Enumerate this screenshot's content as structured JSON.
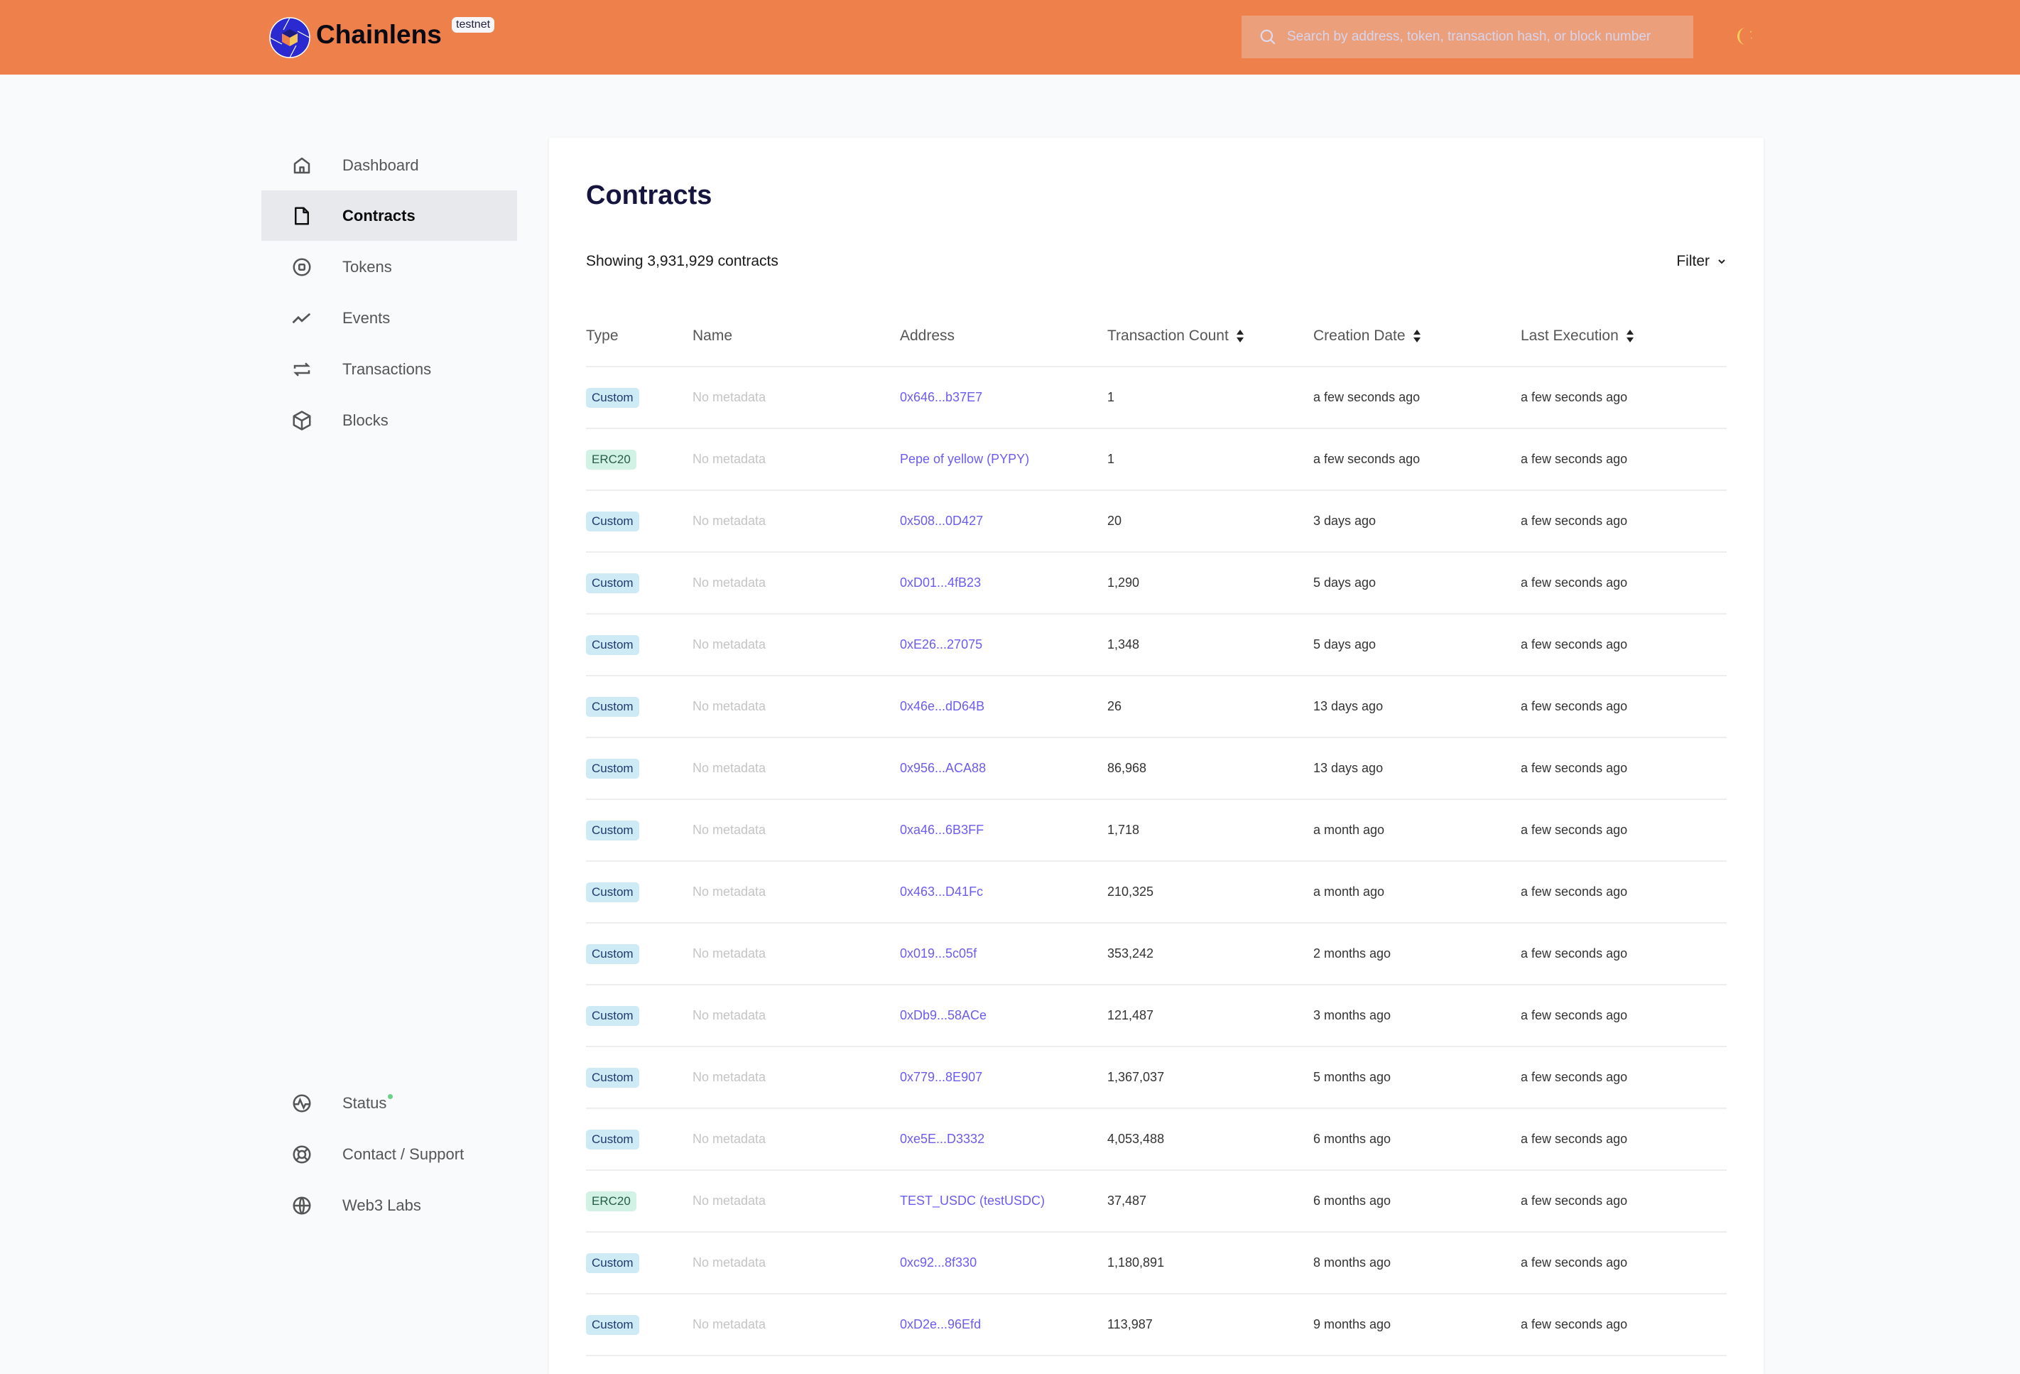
{
  "header": {
    "brand": "Chainlens",
    "network_badge": "testnet",
    "search_placeholder": "Search by address, token, transaction hash, or block number",
    "theme_icon": "moon-icon",
    "color": "#ee804c"
  },
  "sidebar": {
    "items": [
      {
        "label": "Dashboard",
        "icon": "home-icon"
      },
      {
        "label": "Contracts",
        "icon": "file-icon",
        "active": true
      },
      {
        "label": "Tokens",
        "icon": "token-icon"
      },
      {
        "label": "Events",
        "icon": "trend-icon"
      },
      {
        "label": "Transactions",
        "icon": "arrows-icon"
      },
      {
        "label": "Blocks",
        "icon": "cube-icon"
      }
    ],
    "bottom_items": [
      {
        "label": "Status",
        "icon": "pulse-icon"
      },
      {
        "label": "Contact / Support",
        "icon": "lifebuoy-icon"
      },
      {
        "label": "Web3 Labs",
        "icon": "globe-icon"
      }
    ]
  },
  "main": {
    "title": "Contracts",
    "showing": "Showing 3,931,929 contracts",
    "filter_label": "Filter",
    "columns": [
      "Type",
      "Name",
      "Address",
      "Transaction Count",
      "Creation Date",
      "Last Execution"
    ],
    "rows": [
      {
        "type": "Custom",
        "name": "No metadata",
        "address": "0x646...b37E7",
        "tx": "1",
        "created": "a few seconds ago",
        "last": "a few seconds ago"
      },
      {
        "type": "ERC20",
        "name": "No metadata",
        "address": "Pepe of yellow (PYPY)",
        "tx": "1",
        "created": "a few seconds ago",
        "last": "a few seconds ago"
      },
      {
        "type": "Custom",
        "name": "No metadata",
        "address": "0x508...0D427",
        "tx": "20",
        "created": "3 days ago",
        "last": "a few seconds ago"
      },
      {
        "type": "Custom",
        "name": "No metadata",
        "address": "0xD01...4fB23",
        "tx": "1,290",
        "created": "5 days ago",
        "last": "a few seconds ago"
      },
      {
        "type": "Custom",
        "name": "No metadata",
        "address": "0xE26...27075",
        "tx": "1,348",
        "created": "5 days ago",
        "last": "a few seconds ago"
      },
      {
        "type": "Custom",
        "name": "No metadata",
        "address": "0x46e...dD64B",
        "tx": "26",
        "created": "13 days ago",
        "last": "a few seconds ago"
      },
      {
        "type": "Custom",
        "name": "No metadata",
        "address": "0x956...ACA88",
        "tx": "86,968",
        "created": "13 days ago",
        "last": "a few seconds ago"
      },
      {
        "type": "Custom",
        "name": "No metadata",
        "address": "0xa46...6B3FF",
        "tx": "1,718",
        "created": "a month ago",
        "last": "a few seconds ago"
      },
      {
        "type": "Custom",
        "name": "No metadata",
        "address": "0x463...D41Fc",
        "tx": "210,325",
        "created": "a month ago",
        "last": "a few seconds ago"
      },
      {
        "type": "Custom",
        "name": "No metadata",
        "address": "0x019...5c05f",
        "tx": "353,242",
        "created": "2 months ago",
        "last": "a few seconds ago"
      },
      {
        "type": "Custom",
        "name": "No metadata",
        "address": "0xDb9...58ACe",
        "tx": "121,487",
        "created": "3 months ago",
        "last": "a few seconds ago"
      },
      {
        "type": "Custom",
        "name": "No metadata",
        "address": "0x779...8E907",
        "tx": "1,367,037",
        "created": "5 months ago",
        "last": "a few seconds ago"
      },
      {
        "type": "Custom",
        "name": "No metadata",
        "address": "0xe5E...D3332",
        "tx": "4,053,488",
        "created": "6 months ago",
        "last": "a few seconds ago"
      },
      {
        "type": "ERC20",
        "name": "No metadata",
        "address": "TEST_USDC (testUSDC)",
        "tx": "37,487",
        "created": "6 months ago",
        "last": "a few seconds ago"
      },
      {
        "type": "Custom",
        "name": "No metadata",
        "address": "0xc92...8f330",
        "tx": "1,180,891",
        "created": "8 months ago",
        "last": "a few seconds ago"
      },
      {
        "type": "Custom",
        "name": "No metadata",
        "address": "0xD2e...96Efd",
        "tx": "113,987",
        "created": "9 months ago",
        "last": "a few seconds ago"
      }
    ]
  }
}
